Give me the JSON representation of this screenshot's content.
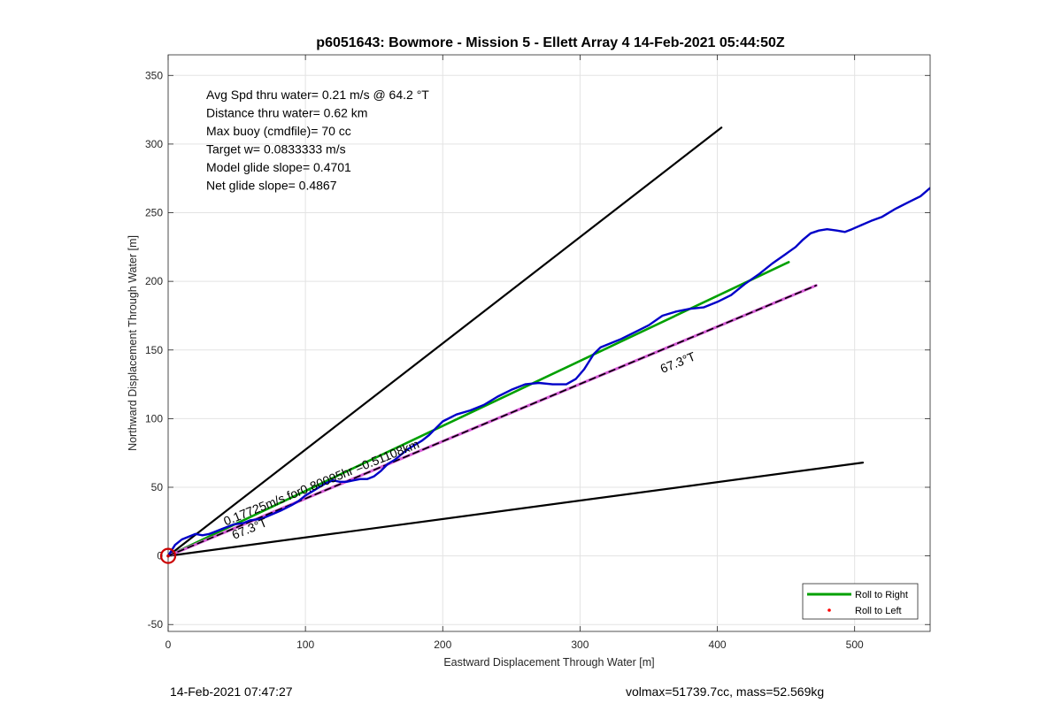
{
  "chart_data": {
    "type": "line",
    "title": "p6051643: Bowmore - Mission 5 - Ellett Array 4 14-Feb-2021 05:44:50Z",
    "xlabel": "Eastward Displacement Through Water [m]",
    "ylabel": "Northward Displacement Through Water [m]",
    "xlim": [
      0,
      555
    ],
    "ylim": [
      -55,
      365
    ],
    "xticks": [
      0,
      100,
      200,
      300,
      400,
      500
    ],
    "yticks": [
      -50,
      0,
      50,
      100,
      150,
      200,
      250,
      300,
      350
    ],
    "grid": true,
    "legend_position": "bottom-right",
    "legend": [
      {
        "label": "Roll to Right",
        "color": "#00a000",
        "style": "line"
      },
      {
        "label": "Roll to Left",
        "color": "#ff0000",
        "style": "dot"
      }
    ],
    "text_lines": [
      "Avg Spd thru water=  0.21 m/s @  64.2 °T",
      "Distance thru water=  0.62 km",
      "Max buoy (cmdfile)= 70 cc",
      "Target w= 0.0833333 m/s",
      "Model glide slope= 0.4701",
      "Net glide slope= 0.4867"
    ],
    "annotations": [
      {
        "text": "0.17725m/s for0.80095hr =0.51108km",
        "x": 42,
        "y": 22,
        "angle_deg": 22
      },
      {
        "text": "67.3°T",
        "x": 48,
        "y": 12,
        "angle_deg": 22
      },
      {
        "text": "67.3°T",
        "x": 360,
        "y": 133,
        "angle_deg": 22
      }
    ],
    "series": [
      {
        "color": "#000000",
        "width": 2.2,
        "dash": "",
        "x": [
          0,
          403
        ],
        "y": [
          0,
          312
        ]
      },
      {
        "color": "#000000",
        "width": 2.2,
        "dash": "",
        "x": [
          0,
          506
        ],
        "y": [
          0,
          68
        ]
      },
      {
        "color": "#00a000",
        "width": 2.6,
        "dash": "",
        "x": [
          0,
          452
        ],
        "y": [
          0,
          214
        ]
      },
      {
        "color": "#d65cd6",
        "width": 3.2,
        "dash": "",
        "x": [
          0,
          472
        ],
        "y": [
          0,
          197
        ]
      },
      {
        "color": "#000000",
        "width": 1.6,
        "dash": "7,5",
        "x": [
          0,
          472
        ],
        "y": [
          0,
          197
        ]
      },
      {
        "color": "#0000c8",
        "width": 2.4,
        "dash": "",
        "x": [
          0,
          5,
          10,
          15,
          20,
          25,
          30,
          35,
          40,
          48,
          55,
          60,
          68,
          75,
          82,
          90,
          95,
          100,
          105,
          110,
          115,
          120,
          125,
          130,
          135,
          140,
          145,
          150,
          155,
          160,
          165,
          170,
          175,
          180,
          185,
          190,
          195,
          200,
          210,
          220,
          230,
          240,
          250,
          260,
          270,
          280,
          290,
          297,
          303,
          310,
          315,
          320,
          330,
          340,
          350,
          360,
          370,
          380,
          390,
          400,
          410,
          420,
          430,
          440,
          450,
          457,
          462,
          468,
          474,
          480,
          487,
          493,
          498,
          505,
          512,
          520,
          530,
          540,
          548,
          555
        ],
        "y": [
          0,
          8,
          12,
          14,
          16,
          15,
          16,
          18,
          20,
          23,
          24,
          26,
          27,
          30,
          33,
          37,
          40,
          44,
          47,
          50,
          53,
          55,
          54,
          54,
          55,
          56,
          56,
          58,
          62,
          67,
          70,
          74,
          78,
          81,
          84,
          88,
          93,
          98,
          103,
          106,
          110,
          116,
          121,
          125,
          126,
          125,
          125,
          129,
          136,
          147,
          152,
          154,
          158,
          163,
          168,
          175,
          178,
          180,
          181,
          185,
          190,
          198,
          205,
          213,
          220,
          225,
          230,
          235,
          237,
          238,
          237,
          236,
          238,
          241,
          244,
          247,
          253,
          258,
          262,
          268
        ]
      }
    ],
    "origin_marker": {
      "x": 0,
      "y": 0,
      "color": "#cc0000"
    }
  },
  "footer": {
    "timestamp": "14-Feb-2021 07:47:27",
    "mass_info": "volmax=51739.7cc, mass=52.569kg"
  }
}
